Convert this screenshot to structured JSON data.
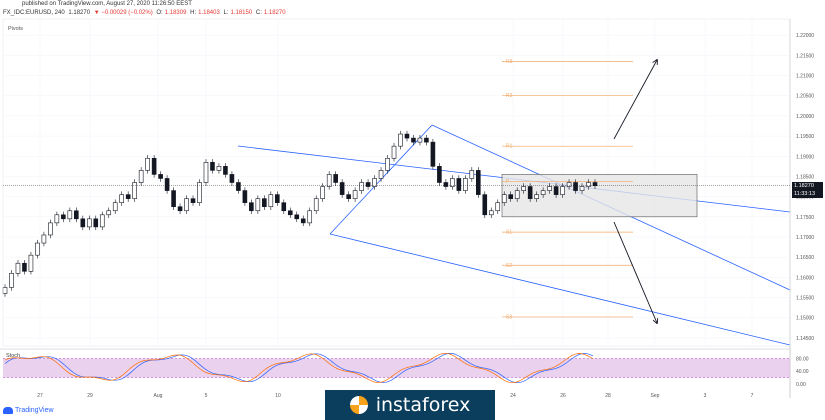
{
  "header": {
    "published": "published on TradingView.com, August 27, 2020 11:26:50 EEST",
    "symbol": "FX_IDC:EURUSD, 240",
    "last": "1.18270",
    "change": "▼ −0.00029 (−0.02%)",
    "o_label": "O:",
    "o_val": "1.18309",
    "h_label": "H:",
    "h_val": "1.18403",
    "l_label": "L:",
    "l_val": "1.18150",
    "c_label": "C:",
    "c_val": "1.18270"
  },
  "pivots_title": "Pivots",
  "price_tag": "1.18270",
  "timer_tag": "11:33:13",
  "stoch_label": "Stoch",
  "brand": "TradingView",
  "watermark": "instaforex",
  "colors": {
    "up": "#ffffff",
    "down": "#131722",
    "channel": "#2962ff",
    "pivot": "#f0a866",
    "stoch_k": "#2962ff",
    "stoch_d": "#ff6d00",
    "stoch_band": "#e1bee7"
  },
  "chart_data": {
    "type": "candlestick",
    "y_axis_ticks": [
      "1.22000",
      "1.21500",
      "1.21000",
      "1.20500",
      "1.20000",
      "1.19500",
      "1.19000",
      "1.18500",
      "1.18000",
      "1.17500",
      "1.17000",
      "1.16500",
      "1.16000",
      "1.15500",
      "1.15000",
      "1.14500"
    ],
    "ylim": [
      1.143,
      1.224
    ],
    "x_axis_ticks": [
      "27",
      "29",
      "Aug",
      "5",
      "10",
      "24",
      "26",
      "28",
      "Sep",
      "3",
      "7"
    ],
    "last_price": 1.1827,
    "closes": [
      1.1575,
      1.161,
      1.1635,
      1.1615,
      1.1655,
      1.1685,
      1.1705,
      1.1735,
      1.1755,
      1.1745,
      1.1765,
      1.1745,
      1.1725,
      1.1745,
      1.1725,
      1.1755,
      1.1765,
      1.1785,
      1.1805,
      1.1795,
      1.1835,
      1.1865,
      1.1895,
      1.1855,
      1.1845,
      1.1815,
      1.1775,
      1.1765,
      1.1795,
      1.1785,
      1.1835,
      1.1885,
      1.1865,
      1.1875,
      1.1855,
      1.1835,
      1.1815,
      1.1785,
      1.1765,
      1.1795,
      1.1775,
      1.1805,
      1.1785,
      1.1765,
      1.1755,
      1.1745,
      1.1735,
      1.1765,
      1.1795,
      1.1825,
      1.1855,
      1.1835,
      1.1805,
      1.1795,
      1.1815,
      1.1835,
      1.1825,
      1.1845,
      1.1865,
      1.1895,
      1.1925,
      1.1955,
      1.1945,
      1.1935,
      1.1945,
      1.1935,
      1.1875,
      1.1835,
      1.1825,
      1.1845,
      1.1815,
      1.1845,
      1.1865,
      1.1805,
      1.1755,
      1.1765,
      1.1785,
      1.1805,
      1.1795,
      1.1815,
      1.1825,
      1.1795,
      1.1805,
      1.1815,
      1.1825,
      1.1805,
      1.1825,
      1.1835,
      1.1815,
      1.1825,
      1.1835,
      1.1827
    ],
    "pivot_levels": [
      {
        "label": "R3",
        "value": 1.2135
      },
      {
        "label": "R2",
        "value": 1.205
      },
      {
        "label": "R1",
        "value": 1.1925
      },
      {
        "label": "P",
        "value": 1.1838
      },
      {
        "label": "S1",
        "value": 1.1712
      },
      {
        "label": "S2",
        "value": 1.163
      },
      {
        "label": "S3",
        "value": 1.1502
      }
    ],
    "stoch_ticks": [
      "80.00",
      "40.00",
      "0.00"
    ]
  }
}
